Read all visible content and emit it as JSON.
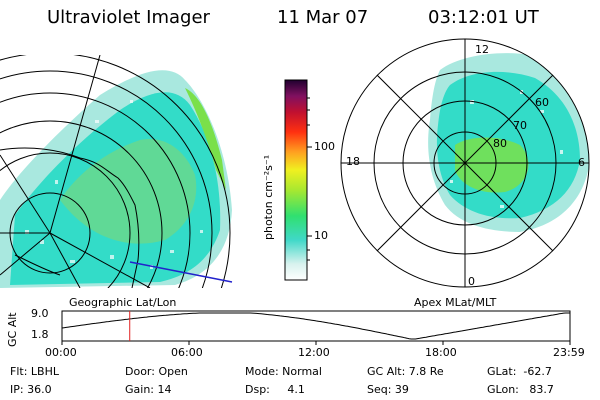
{
  "header": {
    "instrument": "Ultraviolet Imager",
    "date": "11 Mar 07",
    "time": "03:12:01 UT"
  },
  "colorbar": {
    "unit_label": "photon cm⁻²s⁻¹",
    "ticks": [
      "100",
      "10"
    ]
  },
  "geo_panel": {
    "label": "Geographic Lat/Lon"
  },
  "polar_panel": {
    "label": "Apex  MLat/MLT",
    "mlt_labels": {
      "top": "12",
      "left": "18",
      "right": "6",
      "bottom": "0"
    },
    "lat_labels": [
      "80",
      "70",
      "60"
    ]
  },
  "altitude_plot": {
    "ylabel": "GC Alt",
    "ytick_top": "9.0",
    "ytick_bottom": "1.8",
    "xticks": [
      "00:00",
      "06:00",
      "12:00",
      "18:00",
      "23:59"
    ],
    "current_time_marker_hours": 3.2
  },
  "status": {
    "flt": "Flt: LBHL",
    "ip": "IP: 36.0",
    "door": "Door: Open",
    "gain": "Gain: 14",
    "mode": "Mode: Normal",
    "dsp": "Dsp:     4.1",
    "gc_alt": "GC Alt: 7.8 Re",
    "seq": "Seq: 39",
    "glat": "GLat:  -62.7",
    "glon": "GLon:   83.7"
  },
  "colors": {
    "aurora_main": "#33dcc8",
    "aurora_green": "#7ae04a",
    "aurora_pale": "#a9e8df",
    "marker": "#e02020",
    "terminator": "#2222cc"
  }
}
